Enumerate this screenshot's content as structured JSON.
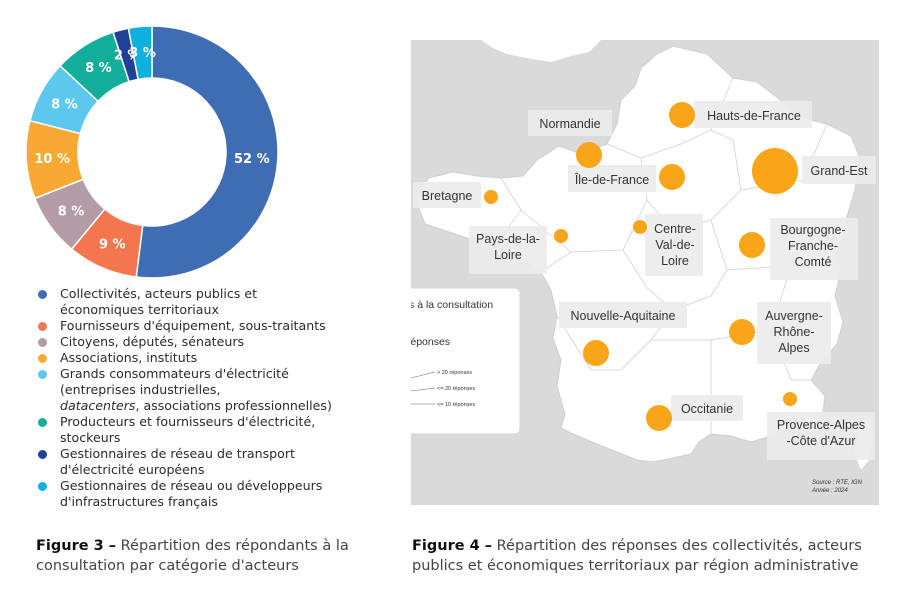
{
  "chart_data": [
    {
      "type": "pie",
      "variant": "donut",
      "labels": [
        "Collectivités, acteurs publics et économiques territoriaux",
        "Fournisseurs d'équipement, sous-traitants",
        "Citoyens, députés, sénateurs",
        "Associations, instituts",
        "Grands consommateurs d'électricité (entreprises industrielles, datacenters, associations professionnelles)",
        "Producteurs et fournisseurs d'électricité, stockeurs",
        "Gestionnaires de réseau de transport d'électricité européens",
        "Gestionnaires de réseau ou développeurs d'infrastructures français"
      ],
      "values": [
        52,
        9,
        8,
        10,
        8,
        8,
        2,
        3
      ],
      "value_labels": [
        "52 %",
        "9 %",
        "8 %",
        "10 %",
        "8 %",
        "8 %",
        "2 %",
        "3 %"
      ],
      "colors": [
        "#3f6db3",
        "#f4764e",
        "#b39ca6",
        "#f9a834",
        "#5cc8ee",
        "#13ae9a",
        "#21409a",
        "#0fb0e0"
      ],
      "legend_position": "bottom",
      "caption_bold": "Figure 3 –",
      "caption": "Répartition des répondants à la consultation par catégorie d'acteurs"
    },
    {
      "type": "scatter",
      "variant": "proportional-symbol map",
      "series": [
        {
          "name": "Réponses à la consultation publique",
          "color": "#f9a51a",
          "points": [
            {
              "label": "Hauts-de-France",
              "size_class": "<= 20 réponses"
            },
            {
              "label": "Normandie",
              "size_class": "<= 20 réponses"
            },
            {
              "label": "Grand-Est",
              "size_class": "> 20 réponses"
            },
            {
              "label": "Île-de-France",
              "size_class": "<= 20 réponses"
            },
            {
              "label": "Bretagne",
              "size_class": "<= 10 réponses"
            },
            {
              "label": "Centre-Val-de-Loire",
              "size_class": "<= 10 réponses"
            },
            {
              "label": "Pays-de-la-Loire",
              "size_class": "<= 10 réponses"
            },
            {
              "label": "Bourgogne-Franche-Comté",
              "size_class": "<= 20 réponses"
            },
            {
              "label": "Nouvelle-Aquitaine",
              "size_class": "<= 20 réponses"
            },
            {
              "label": "Auvergne-Rhône-Alpes",
              "size_class": "<= 20 réponses"
            },
            {
              "label": "Occitanie",
              "size_class": "<= 20 réponses"
            },
            {
              "label": "Provence-Alpes-Côte d'Azur",
              "size_class": "<= 10 réponses"
            }
          ]
        }
      ],
      "legend": {
        "series_label": "Réponses à la consultation publique",
        "size_title": "Nombre de réponses",
        "size_classes": [
          "> 20 réponses",
          "<= 20 réponses",
          "<= 10 réponses"
        ]
      },
      "source": "Source : RTE, IGN",
      "year": "Année : 2024",
      "caption_bold": "Figure 4 –",
      "caption": "Répartition des réponses des collectivités, acteurs publics et économiques territoriaux par région administrative"
    }
  ],
  "legend_items": [
    {
      "text": "Collectivités, acteurs publics et\néconomiques territoriaux",
      "color": "#3f6db3"
    },
    {
      "text": "Fournisseurs d'équipement, sous-traitants",
      "color": "#f4764e"
    },
    {
      "text": "Citoyens, députés, sénateurs",
      "color": "#b39ca6"
    },
    {
      "text": "Associations, instituts",
      "color": "#f9a834"
    },
    {
      "text_before": "Grands consommateurs d'électricité\n(entreprises industrielles,\n",
      "text_italic": "datacenters",
      "text_after": ", associations professionnelles)",
      "color": "#5cc8ee"
    },
    {
      "text": "Producteurs et fournisseurs d'électricité,\nstockeurs",
      "color": "#13ae9a"
    },
    {
      "text": "Gestionnaires de réseau de transport\nd'électricité européens",
      "color": "#21409a"
    },
    {
      "text": "Gestionnaires de réseau ou développeurs\nd'infrastructures français",
      "color": "#0fb0e0"
    }
  ],
  "map_labels": {
    "hauts": "Hauts-de-France",
    "normandie": "Normandie",
    "grandest": "Grand-Est",
    "idf": "Île-de-France",
    "bretagne": "Bretagne",
    "centre": [
      "Centre-",
      "Val-de-",
      "Loire"
    ],
    "pdl": [
      "Pays-de-la-",
      "Loire"
    ],
    "bfc": [
      "Bourgogne-",
      "Franche-",
      "Comté"
    ],
    "naq": "Nouvelle-Aquitaine",
    "ara": [
      "Auvergne-",
      "Rhône-",
      "Alpes"
    ],
    "occ": "Occitanie",
    "paca": [
      "Provence-Alpes",
      "-Côte d'Azur"
    ]
  }
}
